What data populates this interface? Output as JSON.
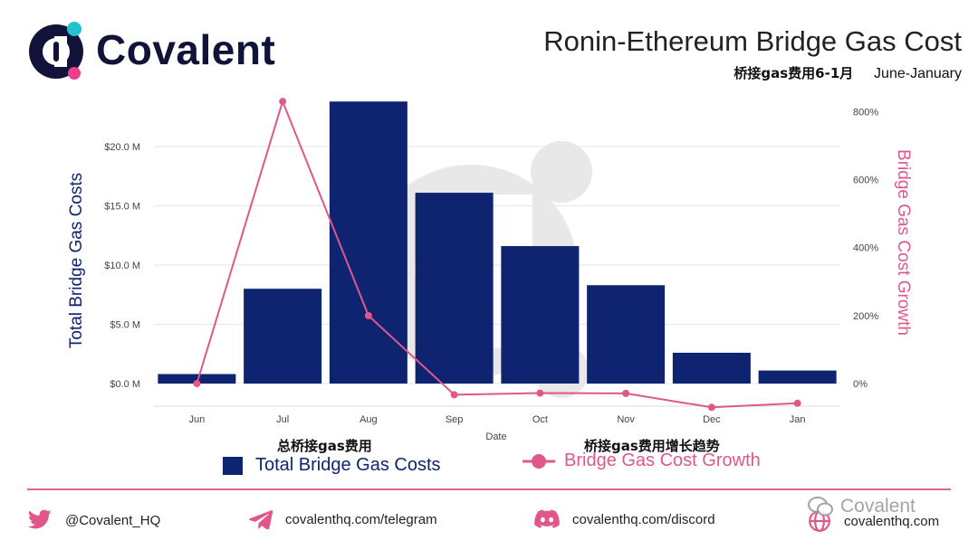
{
  "brand": {
    "name": "Covalent",
    "primary_color": "#12133a",
    "accent_teal": "#21c2cf",
    "accent_pink": "#ee3f8c"
  },
  "header": {
    "title": "Ronin-Ethereum Bridge Gas Cost",
    "subtitle_cn": "桥接gas费用6-1月",
    "subtitle_en": "June-January"
  },
  "chart_data": {
    "type": "bar",
    "title": "Ronin-Ethereum Bridge Gas Cost",
    "categories": [
      "Jun",
      "Jul",
      "Aug",
      "Sep",
      "Oct",
      "Nov",
      "Dec",
      "Jan"
    ],
    "xlabel": "Date",
    "ylabel": "Total Bridge Gas Costs",
    "y2label": "Bridge Gas Cost Growth",
    "ylim": [
      0,
      24
    ],
    "y2lim": [
      -50,
      800
    ],
    "yticks": [
      "$0.0 M",
      "$5.0 M",
      "$10.0 M",
      "$15.0 M",
      "$20.0 M"
    ],
    "y2ticks": [
      "0%",
      "200%",
      "400%",
      "600%",
      "800%"
    ],
    "grid": true,
    "series": [
      {
        "name": "Total Bridge Gas Costs",
        "kind": "bar",
        "axis": "left",
        "color": "#0f2470",
        "values": [
          0.8,
          8.0,
          23.8,
          16.1,
          11.6,
          8.3,
          2.6,
          1.1
        ]
      },
      {
        "name": "Bridge Gas Cost Growth",
        "kind": "line",
        "axis": "right",
        "color": "#e0578a",
        "values": [
          0,
          830,
          200,
          -33,
          -28,
          -29,
          -70,
          -58
        ]
      }
    ],
    "legend_cn": {
      "bars": "总桥接gas费用",
      "line": "桥接gas费用增长趋势"
    }
  },
  "footer": {
    "twitter": "@Covalent_HQ",
    "telegram": "covalenthq.com/telegram",
    "discord": "covalenthq.com/discord",
    "website": "covalenthq.com",
    "watermark": "Covalent"
  }
}
